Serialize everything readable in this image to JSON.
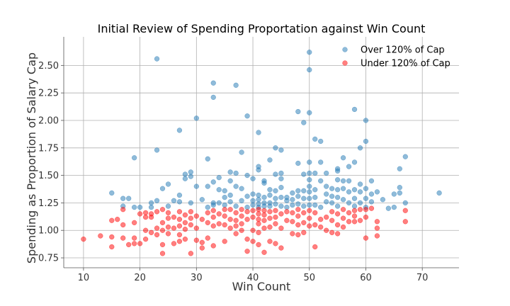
{
  "chart_data": {
    "type": "scatter",
    "title": "Initial Review of Spending Proportation against Win Count",
    "xlabel": "Win Count",
    "ylabel": "Spending as Proportion of Salary Cap",
    "xlim": [
      6.5,
      76.5
    ],
    "ylim": [
      0.66,
      2.76
    ],
    "xticks": [
      10,
      20,
      30,
      40,
      50,
      60,
      70
    ],
    "yticks": [
      0.75,
      1.0,
      1.25,
      1.5,
      1.75,
      2.0,
      2.25,
      2.5
    ],
    "ytick_labels": [
      "0.75",
      "1.00",
      "1.25",
      "1.50",
      "1.75",
      "2.00",
      "2.25",
      "2.50"
    ],
    "grid": true,
    "legend_position": "top-right",
    "series": [
      {
        "name": "Over 120% of Cap",
        "color": "#1f77b4",
        "points": [
          [
            15,
            1.34
          ],
          [
            17,
            1.29
          ],
          [
            17,
            1.22
          ],
          [
            18,
            1.29
          ],
          [
            19,
            1.66
          ],
          [
            19,
            1.21
          ],
          [
            20,
            1.21
          ],
          [
            22,
            1.25
          ],
          [
            22,
            1.21
          ],
          [
            23,
            2.56
          ],
          [
            23,
            1.73
          ],
          [
            23,
            1.27
          ],
          [
            24,
            1.38
          ],
          [
            25,
            1.42
          ],
          [
            25,
            1.22
          ],
          [
            26,
            1.27
          ],
          [
            27,
            1.91
          ],
          [
            27,
            1.32
          ],
          [
            27,
            1.26
          ],
          [
            28,
            1.51
          ],
          [
            28,
            1.47
          ],
          [
            29,
            1.53
          ],
          [
            29,
            1.49
          ],
          [
            29,
            1.25
          ],
          [
            30,
            2.02
          ],
          [
            30,
            1.4
          ],
          [
            31,
            1.28
          ],
          [
            32,
            1.65
          ],
          [
            32,
            1.4
          ],
          [
            32,
            1.21
          ],
          [
            33,
            2.34
          ],
          [
            33,
            2.21
          ],
          [
            33,
            1.44
          ],
          [
            33,
            1.25
          ],
          [
            33,
            1.23
          ],
          [
            34,
            1.48
          ],
          [
            34,
            1.37
          ],
          [
            34,
            1.25
          ],
          [
            35,
            1.36
          ],
          [
            35,
            1.3
          ],
          [
            35,
            1.23
          ],
          [
            36,
            1.53
          ],
          [
            36,
            1.45
          ],
          [
            36,
            1.32
          ],
          [
            36,
            1.26
          ],
          [
            37,
            2.32
          ],
          [
            37,
            1.52
          ],
          [
            37,
            1.4
          ],
          [
            37,
            1.22
          ],
          [
            38,
            1.71
          ],
          [
            38,
            1.38
          ],
          [
            38,
            1.27
          ],
          [
            39,
            2.04
          ],
          [
            39,
            1.5
          ],
          [
            39,
            1.31
          ],
          [
            39,
            1.21
          ],
          [
            40,
            1.47
          ],
          [
            40,
            1.33
          ],
          [
            40,
            1.27
          ],
          [
            40,
            1.23
          ],
          [
            41,
            1.89
          ],
          [
            41,
            1.58
          ],
          [
            41,
            1.55
          ],
          [
            41,
            1.32
          ],
          [
            41,
            1.28
          ],
          [
            41,
            1.24
          ],
          [
            41,
            1.21
          ],
          [
            42,
            1.45
          ],
          [
            42,
            1.43
          ],
          [
            42,
            1.3
          ],
          [
            42,
            1.25
          ],
          [
            42,
            1.22
          ],
          [
            43,
            1.64
          ],
          [
            43,
            1.37
          ],
          [
            43,
            1.32
          ],
          [
            43,
            1.25
          ],
          [
            43,
            1.22
          ],
          [
            44,
            1.75
          ],
          [
            44,
            1.51
          ],
          [
            44,
            1.36
          ],
          [
            44,
            1.29
          ],
          [
            44,
            1.24
          ],
          [
            45,
            1.73
          ],
          [
            45,
            1.52
          ],
          [
            45,
            1.47
          ],
          [
            45,
            1.39
          ],
          [
            45,
            1.3
          ],
          [
            45,
            1.22
          ],
          [
            46,
            1.3
          ],
          [
            46,
            1.27
          ],
          [
            46,
            1.21
          ],
          [
            47,
            1.34
          ],
          [
            47,
            1.28
          ],
          [
            47,
            1.23
          ],
          [
            48,
            2.08
          ],
          [
            48,
            1.61
          ],
          [
            48,
            1.36
          ],
          [
            48,
            1.31
          ],
          [
            48,
            1.24
          ],
          [
            49,
            1.98
          ],
          [
            49,
            1.51
          ],
          [
            49,
            1.36
          ],
          [
            49,
            1.29
          ],
          [
            49,
            1.22
          ],
          [
            50,
            2.62
          ],
          [
            50,
            2.46
          ],
          [
            50,
            2.07
          ],
          [
            50,
            1.62
          ],
          [
            50,
            1.52
          ],
          [
            50,
            1.46
          ],
          [
            50,
            1.4
          ],
          [
            50,
            1.35
          ],
          [
            50,
            1.29
          ],
          [
            50,
            1.23
          ],
          [
            51,
            1.83
          ],
          [
            51,
            1.52
          ],
          [
            51,
            1.37
          ],
          [
            51,
            1.3
          ],
          [
            51,
            1.23
          ],
          [
            52,
            1.81
          ],
          [
            52,
            1.62
          ],
          [
            52,
            1.45
          ],
          [
            52,
            1.21
          ],
          [
            53,
            1.52
          ],
          [
            53,
            1.4
          ],
          [
            53,
            1.33
          ],
          [
            53,
            1.26
          ],
          [
            54,
            1.38
          ],
          [
            54,
            1.31
          ],
          [
            54,
            1.25
          ],
          [
            55,
            1.56
          ],
          [
            55,
            1.54
          ],
          [
            55,
            1.46
          ],
          [
            55,
            1.37
          ],
          [
            55,
            1.3
          ],
          [
            55,
            1.22
          ],
          [
            56,
            1.66
          ],
          [
            56,
            1.45
          ],
          [
            56,
            1.38
          ],
          [
            56,
            1.28
          ],
          [
            57,
            1.58
          ],
          [
            57,
            1.45
          ],
          [
            57,
            1.35
          ],
          [
            57,
            1.25
          ],
          [
            58,
            2.1
          ],
          [
            58,
            1.62
          ],
          [
            58,
            1.37
          ],
          [
            58,
            1.29
          ],
          [
            58,
            1.22
          ],
          [
            59,
            1.75
          ],
          [
            59,
            1.42
          ],
          [
            59,
            1.35
          ],
          [
            59,
            1.25
          ],
          [
            60,
            2.0
          ],
          [
            60,
            1.81
          ],
          [
            60,
            1.38
          ],
          [
            60,
            1.29
          ],
          [
            60,
            1.21
          ],
          [
            61,
            1.45
          ],
          [
            61,
            1.33
          ],
          [
            61,
            1.26
          ],
          [
            62,
            1.35
          ],
          [
            63,
            1.28
          ],
          [
            64,
            1.2
          ],
          [
            65,
            1.33
          ],
          [
            65,
            1.21
          ],
          [
            66,
            1.56
          ],
          [
            66,
            1.39
          ],
          [
            66,
            1.34
          ],
          [
            67,
            1.67
          ],
          [
            67,
            1.25
          ],
          [
            73,
            1.34
          ]
        ]
      },
      {
        "name": "Under 120% of Cap",
        "color": "#ff0000",
        "points": [
          [
            10,
            0.92
          ],
          [
            13,
            0.95
          ],
          [
            15,
            1.09
          ],
          [
            15,
            0.94
          ],
          [
            15,
            0.85
          ],
          [
            16,
            1.1
          ],
          [
            17,
            1.19
          ],
          [
            17,
            1.05
          ],
          [
            17,
            0.93
          ],
          [
            18,
            0.87
          ],
          [
            19,
            1.07
          ],
          [
            19,
            0.93
          ],
          [
            19,
            0.88
          ],
          [
            20,
            1.15
          ],
          [
            20,
            0.88
          ],
          [
            21,
            1.16
          ],
          [
            21,
            1.12
          ],
          [
            21,
            1.0
          ],
          [
            21,
            0.92
          ],
          [
            22,
            1.15
          ],
          [
            22,
            1.12
          ],
          [
            22,
            0.98
          ],
          [
            23,
            1.17
          ],
          [
            23,
            1.02
          ],
          [
            23,
            0.96
          ],
          [
            24,
            1.19
          ],
          [
            24,
            1.07
          ],
          [
            24,
            1.0
          ],
          [
            24,
            0.87
          ],
          [
            24,
            0.79
          ],
          [
            25,
            1.16
          ],
          [
            25,
            1.11
          ],
          [
            25,
            1.03
          ],
          [
            25,
            0.97
          ],
          [
            26,
            1.12
          ],
          [
            26,
            1.02
          ],
          [
            26,
            0.88
          ],
          [
            27,
            1.17
          ],
          [
            27,
            1.1
          ],
          [
            27,
            1.04
          ],
          [
            27,
            0.96
          ],
          [
            27,
            0.9
          ],
          [
            28,
            1.14
          ],
          [
            28,
            1.07
          ],
          [
            28,
            1.01
          ],
          [
            28,
            0.92
          ],
          [
            29,
            1.17
          ],
          [
            29,
            1.11
          ],
          [
            29,
            1.05
          ],
          [
            29,
            0.79
          ],
          [
            30,
            1.13
          ],
          [
            30,
            1.02
          ],
          [
            30,
            0.91
          ],
          [
            31,
            1.1
          ],
          [
            31,
            0.84
          ],
          [
            31,
            0.89
          ],
          [
            32,
            1.16
          ],
          [
            32,
            1.07
          ],
          [
            32,
            0.93
          ],
          [
            33,
            1.18
          ],
          [
            33,
            1.12
          ],
          [
            33,
            1.04
          ],
          [
            33,
            0.86
          ],
          [
            34,
            1.15
          ],
          [
            34,
            1.06
          ],
          [
            35,
            1.19
          ],
          [
            35,
            1.13
          ],
          [
            35,
            1.05
          ],
          [
            35,
            0.9
          ],
          [
            36,
            1.19
          ],
          [
            36,
            1.1
          ],
          [
            36,
            1.02
          ],
          [
            37,
            1.16
          ],
          [
            37,
            1.09
          ],
          [
            37,
            1.04
          ],
          [
            37,
            0.97
          ],
          [
            38,
            1.19
          ],
          [
            38,
            1.13
          ],
          [
            38,
            1.06
          ],
          [
            38,
            1.0
          ],
          [
            39,
            1.17
          ],
          [
            39,
            1.1
          ],
          [
            39,
            0.81
          ],
          [
            39,
            0.92
          ],
          [
            40,
            1.18
          ],
          [
            40,
            1.12
          ],
          [
            40,
            1.0
          ],
          [
            40,
            0.9
          ],
          [
            41,
            1.19
          ],
          [
            41,
            1.15
          ],
          [
            41,
            1.1
          ],
          [
            41,
            1.06
          ],
          [
            41,
            0.98
          ],
          [
            41,
            0.87
          ],
          [
            42,
            1.18
          ],
          [
            42,
            1.14
          ],
          [
            42,
            1.09
          ],
          [
            42,
            1.02
          ],
          [
            42,
            0.8
          ],
          [
            43,
            1.17
          ],
          [
            43,
            1.11
          ],
          [
            43,
            1.03
          ],
          [
            43,
            0.9
          ],
          [
            44,
            1.18
          ],
          [
            44,
            1.12
          ],
          [
            44,
            1.06
          ],
          [
            44,
            0.88
          ],
          [
            45,
            1.15
          ],
          [
            45,
            1.02
          ],
          [
            45,
            0.84
          ],
          [
            46,
            1.17
          ],
          [
            46,
            1.09
          ],
          [
            47,
            1.16
          ],
          [
            47,
            1.08
          ],
          [
            47,
            0.97
          ],
          [
            48,
            1.19
          ],
          [
            48,
            1.13
          ],
          [
            48,
            1.05
          ],
          [
            48,
            0.96
          ],
          [
            49,
            1.16
          ],
          [
            49,
            1.07
          ],
          [
            49,
            0.98
          ],
          [
            50,
            1.18
          ],
          [
            50,
            1.11
          ],
          [
            50,
            1.04
          ],
          [
            51,
            1.16
          ],
          [
            51,
            1.05
          ],
          [
            51,
            0.85
          ],
          [
            52,
            1.1
          ],
          [
            52,
            1.03
          ],
          [
            53,
            1.12
          ],
          [
            53,
            1.0
          ],
          [
            54,
            1.17
          ],
          [
            54,
            1.09
          ],
          [
            54,
            0.98
          ],
          [
            55,
            1.15
          ],
          [
            55,
            1.05
          ],
          [
            55,
            0.97
          ],
          [
            56,
            1.19
          ],
          [
            56,
            1.11
          ],
          [
            56,
            1.03
          ],
          [
            57,
            1.16
          ],
          [
            57,
            1.08
          ],
          [
            58,
            1.18
          ],
          [
            58,
            1.13
          ],
          [
            58,
            1.08
          ],
          [
            59,
            1.19
          ],
          [
            59,
            1.09
          ],
          [
            60,
            1.19
          ],
          [
            60,
            1.12
          ],
          [
            60,
            0.93
          ],
          [
            61,
            1.2
          ],
          [
            62,
            1.08
          ],
          [
            62,
            1.02
          ],
          [
            62,
            0.95
          ],
          [
            67,
            1.18
          ],
          [
            67,
            1.08
          ]
        ]
      }
    ]
  }
}
